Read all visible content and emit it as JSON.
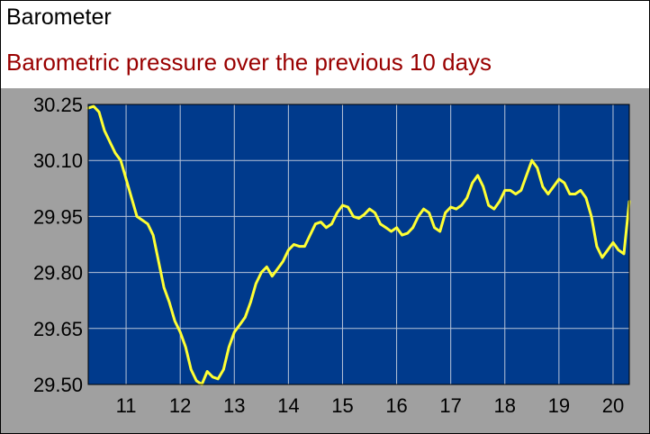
{
  "header": {
    "title": "Barometer",
    "subtitle": "Barometric pressure over the previous 10 days"
  },
  "colors": {
    "subtitle": "#990000",
    "plot_background": "#003a8c",
    "panel_background": "#a0a0a0",
    "grid": "#b8c4d8",
    "line": "#ffff33",
    "tick_text": "#000000"
  },
  "chart_data": {
    "type": "line",
    "title": "",
    "xlabel": "",
    "ylabel": "",
    "xlim": [
      10.3,
      20.3
    ],
    "ylim": [
      29.5,
      30.25
    ],
    "grid": true,
    "x_ticks": [
      11,
      12,
      13,
      14,
      15,
      16,
      17,
      18,
      19,
      20
    ],
    "y_ticks": [
      29.5,
      29.65,
      29.8,
      29.95,
      30.1,
      30.25
    ],
    "x_tick_labels": [
      "11",
      "12",
      "13",
      "14",
      "15",
      "16",
      "17",
      "18",
      "19",
      "20"
    ],
    "y_tick_labels": [
      "29.50",
      "29.65",
      "29.80",
      "29.95",
      "30.10",
      "30.25"
    ],
    "series": [
      {
        "x": [
          10.3,
          10.4,
          10.5,
          10.6,
          10.7,
          10.8,
          10.9,
          11.0,
          11.1,
          11.2,
          11.3,
          11.4,
          11.5,
          11.6,
          11.7,
          11.8,
          11.9,
          12.0,
          12.1,
          12.2,
          12.3,
          12.4,
          12.5,
          12.6,
          12.7,
          12.8,
          12.9,
          13.0,
          13.1,
          13.2,
          13.3,
          13.4,
          13.5,
          13.6,
          13.7,
          13.8,
          13.9,
          14.0,
          14.1,
          14.2,
          14.3,
          14.4,
          14.5,
          14.6,
          14.7,
          14.8,
          14.9,
          15.0,
          15.1,
          15.2,
          15.3,
          15.4,
          15.5,
          15.6,
          15.7,
          15.8,
          15.9,
          16.0,
          16.1,
          16.2,
          16.3,
          16.4,
          16.5,
          16.6,
          16.7,
          16.8,
          16.9,
          17.0,
          17.1,
          17.2,
          17.3,
          17.4,
          17.5,
          17.6,
          17.7,
          17.8,
          17.9,
          18.0,
          18.1,
          18.2,
          18.3,
          18.4,
          18.5,
          18.6,
          18.7,
          18.8,
          18.9,
          19.0,
          19.1,
          19.2,
          19.3,
          19.4,
          19.5,
          19.6,
          19.7,
          19.8,
          19.9,
          20.0,
          20.1,
          20.2,
          20.3
        ],
        "values": [
          30.24,
          30.245,
          30.23,
          30.18,
          30.15,
          30.12,
          30.1,
          30.05,
          30.0,
          29.95,
          29.94,
          29.93,
          29.9,
          29.83,
          29.76,
          29.72,
          29.67,
          29.64,
          29.6,
          29.54,
          29.51,
          29.5,
          29.535,
          29.52,
          29.515,
          29.54,
          29.6,
          29.64,
          29.66,
          29.68,
          29.72,
          29.77,
          29.8,
          29.815,
          29.79,
          29.81,
          29.83,
          29.86,
          29.875,
          29.87,
          29.87,
          29.9,
          29.93,
          29.935,
          29.92,
          29.93,
          29.96,
          29.98,
          29.975,
          29.95,
          29.945,
          29.955,
          29.97,
          29.96,
          29.93,
          29.92,
          29.91,
          29.92,
          29.9,
          29.905,
          29.92,
          29.95,
          29.97,
          29.96,
          29.92,
          29.91,
          29.96,
          29.975,
          29.97,
          29.98,
          30.0,
          30.04,
          30.06,
          30.03,
          29.98,
          29.97,
          29.99,
          30.02,
          30.02,
          30.01,
          30.02,
          30.06,
          30.1,
          30.08,
          30.03,
          30.01,
          30.03,
          30.05,
          30.04,
          30.01,
          30.01,
          30.02,
          30.0,
          29.95,
          29.87,
          29.84,
          29.86,
          29.88,
          29.86,
          29.85,
          29.99
        ]
      }
    ]
  }
}
